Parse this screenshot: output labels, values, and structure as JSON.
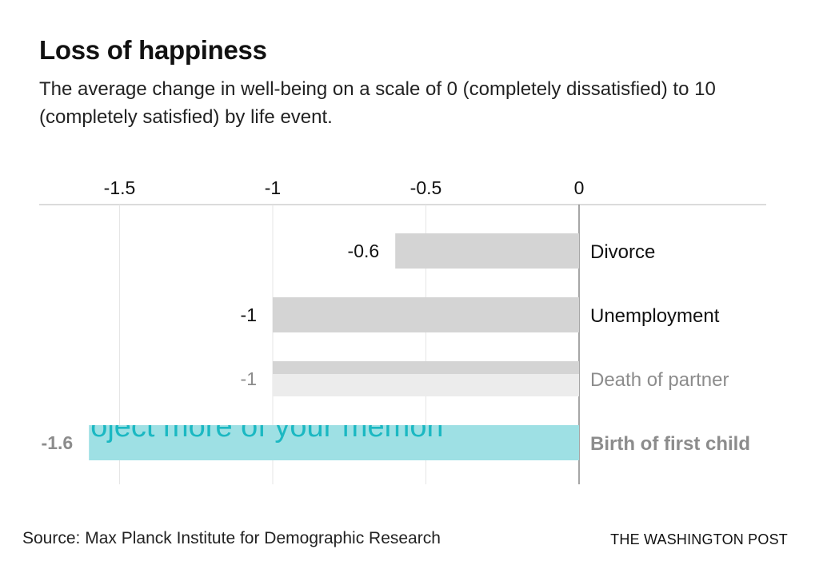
{
  "header": {
    "title": "Loss of happiness",
    "subtitle": "The average change in well-being on a scale of 0 (completely dissatisfied) to 10 (completely satisfied) by life event."
  },
  "footer": {
    "source": "Source: Max Planck Institute for Demographic Research",
    "brand": "THE WASHINGTON POST"
  },
  "overlay_text": "oject more of your memori",
  "chart_data": {
    "type": "bar",
    "orientation": "horizontal",
    "title": "Loss of happiness",
    "subtitle": "The average change in well-being on a scale of 0 (completely dissatisfied) to 10 (completely satisfied) by life event.",
    "xlabel": "",
    "ylabel": "",
    "xlim": [
      -1.8,
      0
    ],
    "x_ticks": [
      -1.5,
      -1,
      -0.5,
      0
    ],
    "x_tick_labels": [
      "-1.5",
      "-1",
      "-0.5",
      "0"
    ],
    "grid": true,
    "categories": [
      "Divorce",
      "Unemployment",
      "Death of partner",
      "Birth of first child"
    ],
    "values": [
      -0.6,
      -1,
      -1,
      -1.6
    ],
    "value_labels": [
      "-0.6",
      "-1",
      "-1",
      "-1.6"
    ],
    "colors": {
      "bar_default": "#d4d4d4",
      "bar_partial": "#ececec",
      "bar_highlight": "#9ee0e4",
      "overlay_text": "#1bb8c2",
      "grid": "#e6e6e6",
      "axis": "#888888",
      "label_dark": "#111111",
      "label_muted": "#8c8c8c"
    }
  }
}
